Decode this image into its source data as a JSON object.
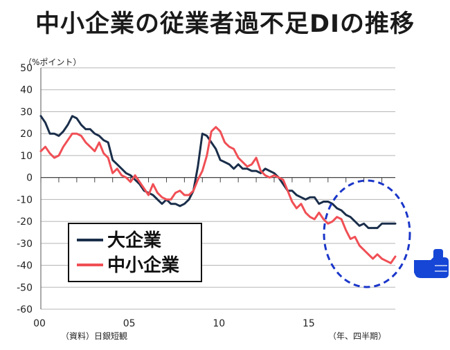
{
  "title": "中小企業の従業者過不足DIの推移",
  "chart_data": {
    "type": "line",
    "title": "中小企業の従業者過不足DIの推移",
    "ylabel": "（%ポイント）",
    "xlabel": "（年、四半期）",
    "source": "（資料）日銀短観",
    "ylim": [
      -60,
      50
    ],
    "yticks": [
      50,
      40,
      30,
      20,
      10,
      0,
      -10,
      -20,
      -30,
      -40,
      -50,
      -60
    ],
    "xticks": [
      {
        "value": 2000,
        "label": "00"
      },
      {
        "value": 2005,
        "label": "05"
      },
      {
        "value": 2010,
        "label": "10"
      },
      {
        "value": 2015,
        "label": "15"
      }
    ],
    "x_range": [
      2000.0,
      2019.75
    ],
    "grid": true,
    "legend_position": "lower-left",
    "x": [
      2000.0,
      2000.25,
      2000.5,
      2000.75,
      2001.0,
      2001.25,
      2001.5,
      2001.75,
      2002.0,
      2002.25,
      2002.5,
      2002.75,
      2003.0,
      2003.25,
      2003.5,
      2003.75,
      2004.0,
      2004.25,
      2004.5,
      2004.75,
      2005.0,
      2005.25,
      2005.5,
      2005.75,
      2006.0,
      2006.25,
      2006.5,
      2006.75,
      2007.0,
      2007.25,
      2007.5,
      2007.75,
      2008.0,
      2008.25,
      2008.5,
      2008.75,
      2009.0,
      2009.25,
      2009.5,
      2009.75,
      2010.0,
      2010.25,
      2010.5,
      2010.75,
      2011.0,
      2011.25,
      2011.5,
      2011.75,
      2012.0,
      2012.25,
      2012.5,
      2012.75,
      2013.0,
      2013.25,
      2013.5,
      2013.75,
      2014.0,
      2014.25,
      2014.5,
      2014.75,
      2015.0,
      2015.25,
      2015.5,
      2015.75,
      2016.0,
      2016.25,
      2016.5,
      2016.75,
      2017.0,
      2017.25,
      2017.5,
      2017.75,
      2018.0,
      2018.25,
      2018.5,
      2018.75,
      2019.0,
      2019.25,
      2019.5,
      2019.75
    ],
    "series": [
      {
        "name": "大企業",
        "color": "#1a2e4a",
        "values": [
          28,
          25,
          20,
          20,
          19,
          21,
          24,
          28,
          27,
          24,
          22,
          22,
          20,
          19,
          17,
          16,
          8,
          6,
          4,
          2,
          1,
          -1,
          -3,
          -6,
          -7,
          -8,
          -10,
          -12,
          -10,
          -12,
          -12,
          -13,
          -12,
          -10,
          -6,
          5,
          20,
          19,
          16,
          13,
          8,
          7,
          6,
          4,
          6,
          4,
          4,
          3,
          3,
          2,
          4,
          3,
          2,
          0,
          -3,
          -6,
          -6,
          -8,
          -9,
          -10,
          -9,
          -9,
          -12,
          -11,
          -11,
          -12,
          -14,
          -15,
          -17,
          -18,
          -20,
          -22,
          -21,
          -23,
          -23,
          -23,
          -21,
          -21,
          -21,
          -21
        ]
      },
      {
        "name": "中小企業",
        "color": "#f04f55",
        "values": [
          12,
          14,
          11,
          9,
          10,
          14,
          17,
          20,
          20,
          19,
          16,
          14,
          12,
          16,
          11,
          9,
          2,
          4,
          1,
          0,
          -2,
          1,
          -2,
          -5,
          -8,
          -3,
          -7,
          -9,
          -10,
          -10,
          -7,
          -6,
          -8,
          -8,
          -6,
          -1,
          3,
          10,
          21,
          23,
          21,
          16,
          14,
          13,
          9,
          7,
          5,
          6,
          9,
          3,
          1,
          0,
          1,
          0,
          -1,
          -6,
          -11,
          -14,
          -12,
          -16,
          -18,
          -19,
          -16,
          -19,
          -21,
          -20,
          -18,
          -19,
          -24,
          -28,
          -27,
          -31,
          -33,
          -35,
          -37,
          -35,
          -37,
          -38,
          -39,
          -36
        ]
      }
    ],
    "highlight": {
      "shape": "dashed-ellipse",
      "color": "#1a36c9",
      "region": "2017–2019 period"
    },
    "pointer": {
      "icon": "pointing-hand-icon",
      "color": "#1546d6"
    }
  }
}
